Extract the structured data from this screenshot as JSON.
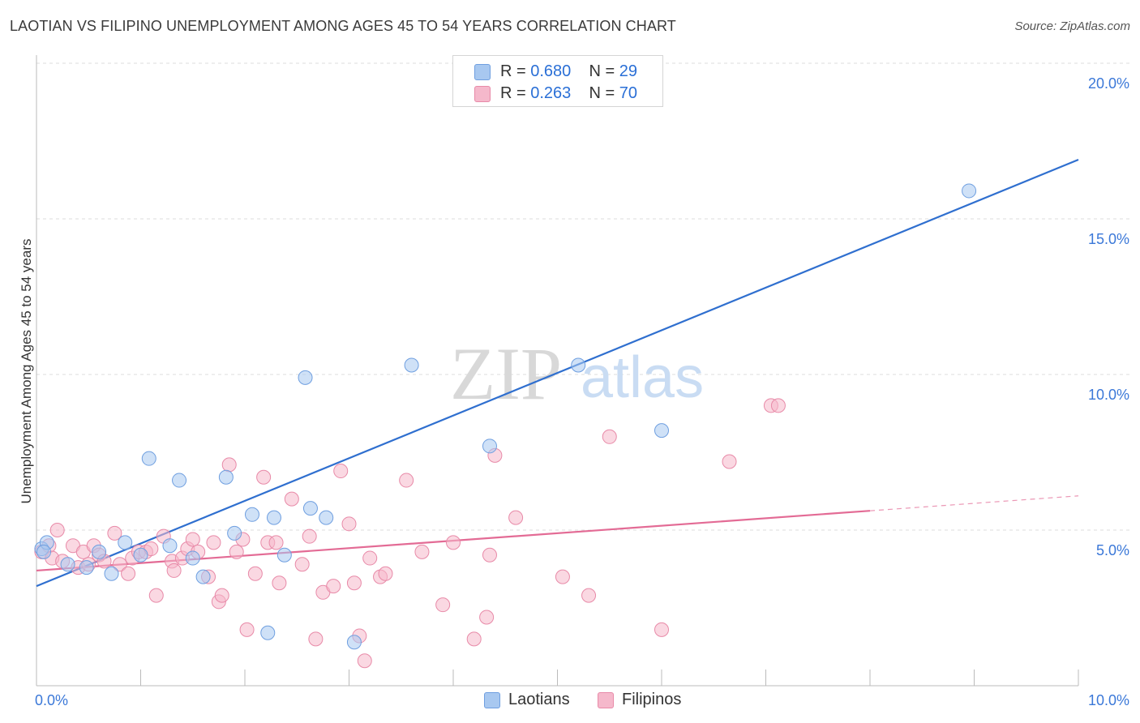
{
  "header": {
    "title": "LAOTIAN VS FILIPINO UNEMPLOYMENT AMONG AGES 45 TO 54 YEARS CORRELATION CHART",
    "source": "Source: ZipAtlas.com"
  },
  "watermark": {
    "zip": "ZIP",
    "atlas": "atlas"
  },
  "legend": {
    "rows": [
      {
        "r_label": "R =",
        "r_value": "0.680",
        "n_label": "N =",
        "n_value": "29",
        "color": "#a8c8f0"
      },
      {
        "r_label": "R =",
        "r_value": "0.263",
        "n_label": "N =",
        "n_value": "70",
        "color": "#f5b8cb"
      }
    ]
  },
  "bottom_legend": [
    {
      "label": "Laotians",
      "color": "#a8c8f0"
    },
    {
      "label": "Filipinos",
      "color": "#f5b8cb"
    }
  ],
  "colors": {
    "blue_line": "#2f6fcf",
    "blue_fill": "#a8c8f0",
    "blue_stroke": "#6f9fe0",
    "pink_line": "#e36b95",
    "pink_fill": "#f5b8cb",
    "pink_stroke": "#e88aa8",
    "grid": "#dddddd",
    "tick_text": "#3b78d8"
  },
  "chart_data": {
    "type": "scatter",
    "title": "LAOTIAN VS FILIPINO UNEMPLOYMENT AMONG AGES 45 TO 54 YEARS CORRELATION CHART",
    "xlabel": "",
    "ylabel": "Unemployment Among Ages 45 to 54 years",
    "xlim": [
      0,
      10
    ],
    "ylim": [
      0,
      20
    ],
    "x_tick_labels": [
      "0.0%",
      "10.0%"
    ],
    "y_ticks": [
      5,
      10,
      15,
      20
    ],
    "y_tick_labels": [
      "5.0%",
      "10.0%",
      "15.0%",
      "20.0%"
    ],
    "grid": true,
    "series": [
      {
        "name": "Laotians",
        "r": 0.68,
        "n": 29,
        "trend": {
          "x0": 0.0,
          "y0": 3.2,
          "x1": 10.0,
          "y1": 16.9,
          "dash_from": null
        },
        "points": [
          [
            0.05,
            4.4
          ],
          [
            0.1,
            4.6
          ],
          [
            0.07,
            4.3
          ],
          [
            0.3,
            3.9
          ],
          [
            0.48,
            3.8
          ],
          [
            0.6,
            4.3
          ],
          [
            0.72,
            3.6
          ],
          [
            0.85,
            4.6
          ],
          [
            1.0,
            4.2
          ],
          [
            1.08,
            7.3
          ],
          [
            1.28,
            4.5
          ],
          [
            1.37,
            6.6
          ],
          [
            1.5,
            4.1
          ],
          [
            1.6,
            3.5
          ],
          [
            1.82,
            6.7
          ],
          [
            1.9,
            4.9
          ],
          [
            2.07,
            5.5
          ],
          [
            2.22,
            1.7
          ],
          [
            2.28,
            5.4
          ],
          [
            2.38,
            4.2
          ],
          [
            2.58,
            9.9
          ],
          [
            2.63,
            5.7
          ],
          [
            2.78,
            5.4
          ],
          [
            3.05,
            1.4
          ],
          [
            3.6,
            10.3
          ],
          [
            4.35,
            7.7
          ],
          [
            5.2,
            10.3
          ],
          [
            6.0,
            8.2
          ],
          [
            8.95,
            15.9
          ]
        ]
      },
      {
        "name": "Filipinos",
        "r": 0.263,
        "n": 70,
        "trend": {
          "x0": 0.0,
          "y0": 3.7,
          "x1": 10.0,
          "y1": 6.1,
          "dash_from": 8.0
        },
        "points": [
          [
            0.05,
            4.3
          ],
          [
            0.12,
            4.5
          ],
          [
            0.15,
            4.1
          ],
          [
            0.2,
            5.0
          ],
          [
            0.25,
            4.0
          ],
          [
            0.35,
            4.5
          ],
          [
            0.4,
            3.8
          ],
          [
            0.45,
            4.3
          ],
          [
            0.5,
            3.9
          ],
          [
            0.55,
            4.5
          ],
          [
            0.6,
            4.2
          ],
          [
            0.65,
            4.0
          ],
          [
            0.75,
            4.9
          ],
          [
            0.8,
            3.9
          ],
          [
            0.88,
            3.6
          ],
          [
            0.92,
            4.1
          ],
          [
            0.98,
            4.3
          ],
          [
            1.05,
            4.3
          ],
          [
            1.1,
            4.4
          ],
          [
            1.15,
            2.9
          ],
          [
            1.22,
            4.8
          ],
          [
            1.3,
            4.0
          ],
          [
            1.32,
            3.7
          ],
          [
            1.4,
            4.1
          ],
          [
            1.45,
            4.4
          ],
          [
            1.5,
            4.7
          ],
          [
            1.55,
            4.3
          ],
          [
            1.65,
            3.5
          ],
          [
            1.7,
            4.6
          ],
          [
            1.75,
            2.7
          ],
          [
            1.78,
            2.9
          ],
          [
            1.85,
            7.1
          ],
          [
            1.92,
            4.3
          ],
          [
            1.98,
            4.7
          ],
          [
            2.02,
            1.8
          ],
          [
            2.1,
            3.6
          ],
          [
            2.18,
            6.7
          ],
          [
            2.22,
            4.6
          ],
          [
            2.3,
            4.6
          ],
          [
            2.33,
            3.3
          ],
          [
            2.45,
            6.0
          ],
          [
            2.55,
            3.9
          ],
          [
            2.62,
            4.8
          ],
          [
            2.68,
            1.5
          ],
          [
            2.75,
            3.0
          ],
          [
            2.85,
            3.2
          ],
          [
            2.92,
            6.9
          ],
          [
            3.0,
            5.2
          ],
          [
            3.05,
            3.3
          ],
          [
            3.1,
            1.6
          ],
          [
            3.15,
            0.8
          ],
          [
            3.2,
            4.1
          ],
          [
            3.3,
            3.5
          ],
          [
            3.35,
            3.6
          ],
          [
            3.55,
            6.6
          ],
          [
            3.7,
            4.3
          ],
          [
            3.9,
            2.6
          ],
          [
            4.0,
            4.6
          ],
          [
            4.2,
            1.5
          ],
          [
            4.32,
            2.2
          ],
          [
            4.35,
            4.2
          ],
          [
            4.4,
            7.4
          ],
          [
            4.6,
            5.4
          ],
          [
            5.05,
            3.5
          ],
          [
            5.3,
            2.9
          ],
          [
            5.5,
            8.0
          ],
          [
            6.0,
            1.8
          ],
          [
            6.65,
            7.2
          ],
          [
            7.05,
            9.0
          ],
          [
            7.12,
            9.0
          ]
        ]
      }
    ]
  }
}
